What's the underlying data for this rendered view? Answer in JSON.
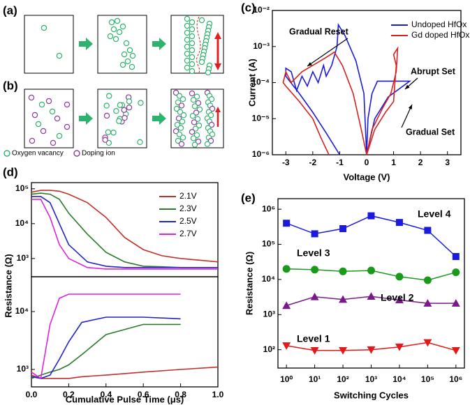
{
  "schematic": {
    "labels": [
      "(a)",
      "(b)"
    ],
    "legend": [
      "Oxygen vacancy",
      "Doping ion"
    ]
  },
  "chart_data": [
    {
      "panel": "(c)",
      "type": "line",
      "xlabel": "Voltage (V)",
      "ylabel": "Current (A)",
      "ylog": true,
      "xlim": [
        -3.5,
        3.5
      ],
      "xticks": [
        -3,
        -2,
        -1,
        0,
        1,
        2,
        3
      ],
      "ylim": [
        1e-06,
        0.01
      ],
      "yticks": [
        {
          "value": 1e-06,
          "label": "10⁻⁶"
        },
        {
          "value": 1e-05,
          "label": "10⁻⁵"
        },
        {
          "value": 0.0001,
          "label": "10⁻⁴"
        },
        {
          "value": 0.001,
          "label": "10⁻³"
        },
        {
          "value": 0.01,
          "label": "10⁻²"
        }
      ],
      "legend": "upper right",
      "annotations": [
        "Gradual Reset",
        "Abrupt Set",
        "Gradual Set"
      ],
      "series": [
        {
          "name": "Undoped HfOx",
          "color": "#1a1adb",
          "x": [
            0,
            0.3,
            0.8,
            1.6,
            0.4,
            0.2,
            0.05,
            0,
            -0.1,
            -0.4,
            -0.8,
            -1.05,
            -1.1,
            -1.3,
            -1.5,
            -1.6,
            -1.8,
            -2.0,
            -2.2,
            -2.4,
            -2.6,
            -2.8,
            -3.0,
            -3.0,
            -2.5,
            -2.0,
            -1.5,
            -1.0
          ],
          "values": [
            1e-06,
            1e-05,
            4e-05,
            0.00011,
            0.00011,
            5e-05,
            1e-05,
            1e-06,
            5e-05,
            0.0004,
            0.002,
            0.004,
            0.001,
            0.0003,
            0.00015,
            0.0003,
            0.0001,
            0.0002,
            8e-05,
            0.00015,
            6e-05,
            0.0002,
            0.00025,
            0.00015,
            5e-05,
            1.5e-05,
            4e-06,
            1e-06
          ]
        },
        {
          "name": "Gd doped HfOx",
          "color": "#d92020",
          "x": [
            0,
            0.3,
            0.7,
            1.0,
            1.05,
            1.1,
            1.0,
            1.15,
            1.1,
            0.9,
            0.6,
            0.2,
            0,
            -0.2,
            -0.5,
            -0.9,
            -1.2,
            -1.5,
            -2.0,
            -2.4,
            -2.8,
            -3.0,
            -3.1,
            -3.0,
            -2.5,
            -2.0,
            -1.7,
            -1.4
          ],
          "values": [
            1e-06,
            5e-06,
            1.5e-05,
            3e-05,
            0.0001,
            0.0003,
            0.0006,
            0.0009,
            0.0002,
            5e-05,
            2e-05,
            5e-06,
            1e-06,
            5e-06,
            5e-05,
            0.0003,
            0.0007,
            0.0005,
            0.0003,
            0.0002,
            0.0001,
            0.0002,
            0.0001,
            8e-05,
            3e-05,
            1e-05,
            3e-06,
            1e-06
          ]
        }
      ]
    },
    {
      "panel": "(d)",
      "type": "line",
      "ylabel": "Resistance (Ω)",
      "ylog": true,
      "xlim": [
        0,
        1
      ],
      "ylim": [
        300,
        150000
      ],
      "yticks": [
        {
          "value": 1000,
          "label": "10³"
        },
        {
          "value": 10000,
          "label": "10⁴"
        },
        {
          "value": 100000,
          "label": "10⁵"
        }
      ],
      "legend": "upper right",
      "x": [
        0,
        0.05,
        0.1,
        0.15,
        0.2,
        0.3,
        0.4,
        0.5,
        0.6,
        0.7,
        0.8,
        1.0
      ],
      "series": [
        {
          "name": "2.1V",
          "color": "#c0302a",
          "values": [
            80000,
            90000,
            90000,
            85000,
            70000,
            40000,
            15000,
            4000,
            1800,
            1200,
            1000,
            800
          ]
        },
        {
          "name": "2.3V",
          "color": "#2a7a2a",
          "values": [
            70000,
            75000,
            70000,
            50000,
            20000,
            5000,
            1500,
            800,
            600,
            580,
            550,
            550
          ]
        },
        {
          "name": "2.5V",
          "color": "#2222cc",
          "values": [
            60000,
            60000,
            40000,
            10000,
            2500,
            800,
            600,
            550,
            550,
            550,
            550,
            550
          ]
        },
        {
          "name": "2.7V",
          "color": "#e020e0",
          "values": [
            50000,
            50000,
            15000,
            2500,
            1000,
            550,
            500,
            500,
            500,
            500,
            500,
            500
          ]
        }
      ]
    },
    {
      "type": "line",
      "xlabel": "Cumulative Pulse Time (μs)",
      "ylog": true,
      "xlim": [
        0,
        1
      ],
      "xticks": [
        {
          "value": 0,
          "label": "0.0"
        },
        {
          "value": 0.2,
          "label": "0.2"
        },
        {
          "value": 0.4,
          "label": "0.4"
        },
        {
          "value": 0.6,
          "label": "0.6"
        },
        {
          "value": 0.8,
          "label": "0.8"
        },
        {
          "value": 1,
          "label": "1.0"
        }
      ],
      "ylim": [
        500,
        40000
      ],
      "yticks": [
        {
          "value": 1000,
          "label": "10³"
        },
        {
          "value": 10000,
          "label": "10⁴"
        }
      ],
      "x": [
        0,
        0.05,
        0.1,
        0.15,
        0.2,
        0.27,
        0.4,
        0.6,
        0.8,
        1.0
      ],
      "series": [
        {
          "color": "#c0302a",
          "values": [
            800,
            700,
            700,
            700,
            700,
            750,
            800,
            900,
            1000,
            1100
          ]
        },
        {
          "color": "#2a7a2a",
          "values": [
            700,
            800,
            900,
            1000,
            1200,
            1800,
            4000,
            6000,
            6000,
            null
          ]
        },
        {
          "color": "#2222cc",
          "values": [
            750,
            700,
            800,
            1500,
            3000,
            6500,
            8000,
            8000,
            7500,
            null
          ]
        },
        {
          "color": "#e020e0",
          "values": [
            900,
            700,
            6000,
            17000,
            20000,
            20000,
            20000,
            20000,
            20000,
            null
          ]
        }
      ]
    },
    {
      "panel": "(e)",
      "type": "line",
      "xlabel": "Switching Cycles",
      "ylabel": "Resistance (Ω)",
      "xlog": true,
      "ylog": true,
      "legend": "inline",
      "xlim": [
        0.5,
        2000000
      ],
      "xticks": [
        {
          "value": 1,
          "label": "10⁰"
        },
        {
          "value": 10,
          "label": "10¹"
        },
        {
          "value": 100,
          "label": "10²"
        },
        {
          "value": 1000,
          "label": "10³"
        },
        {
          "value": 10000,
          "label": "10⁴"
        },
        {
          "value": 100000,
          "label": "10⁵"
        },
        {
          "value": 1000000,
          "label": "10⁶"
        }
      ],
      "ylim": [
        30,
        2000000
      ],
      "yticks": [
        {
          "value": 100,
          "label": "10²"
        },
        {
          "value": 1000,
          "label": "10³"
        },
        {
          "value": 10000,
          "label": "10⁴"
        },
        {
          "value": 100000,
          "label": "10⁵"
        },
        {
          "value": 1000000,
          "label": "10⁶"
        }
      ],
      "x": [
        1,
        10,
        100,
        1000,
        10000,
        100000,
        1000000
      ],
      "series": [
        {
          "name": "Level 4",
          "color": "#1a1ae0",
          "marker": "square",
          "values": [
            400000,
            200000,
            280000,
            650000,
            420000,
            250000,
            45000
          ]
        },
        {
          "name": "Level 3",
          "color": "#1a9a1a",
          "marker": "circle",
          "values": [
            20000,
            19000,
            17000,
            18000,
            12000,
            9500,
            16000
          ]
        },
        {
          "name": "Level 2",
          "color": "#7a1a8a",
          "marker": "triangle-up",
          "values": [
            1800,
            3200,
            2700,
            3300,
            2600,
            2100,
            2100
          ]
        },
        {
          "name": "Level 1",
          "color": "#e01a1a",
          "marker": "triangle-down",
          "values": [
            130,
            95,
            95,
            100,
            120,
            160,
            95
          ]
        }
      ]
    }
  ]
}
